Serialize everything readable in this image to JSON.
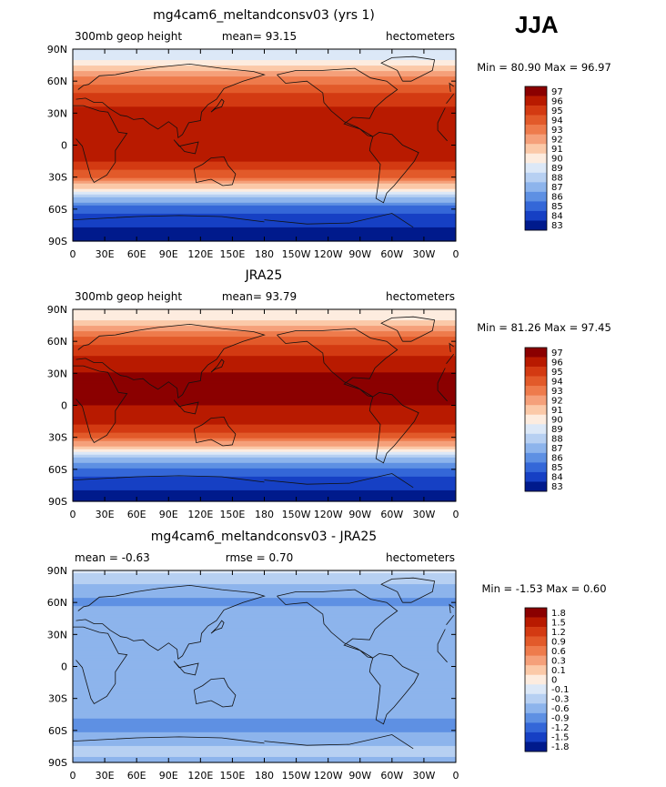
{
  "season": "JJA",
  "chart_data": [
    {
      "type": "heatmap",
      "title": "mg4cam6_meltandconsv03 (yrs 1)",
      "left_label": "300mb geop height",
      "center_label": "mean=  93.15",
      "right_label": "hectometers",
      "stats": "Min =  80.90 Max =  96.97",
      "x_ticks": [
        "0",
        "30E",
        "60E",
        "90E",
        "120E",
        "150E",
        "180",
        "150W",
        "120W",
        "90W",
        "60W",
        "30W",
        "0"
      ],
      "y_ticks": [
        "90N",
        "60N",
        "30N",
        "0",
        "30S",
        "60S",
        "90S"
      ],
      "colorbar": {
        "labels": [
          "97",
          "96",
          "95",
          "94",
          "93",
          "92",
          "91",
          "90",
          "89",
          "88",
          "87",
          "86",
          "85",
          "84",
          "83"
        ],
        "colors": [
          "#8b0000",
          "#b81a00",
          "#d33a12",
          "#e25a2a",
          "#ee7b4c",
          "#f5a07a",
          "#fbc9a8",
          "#fdecdf",
          "#dce8f7",
          "#b7d0f2",
          "#8db4ec",
          "#5e90e3",
          "#3467d8",
          "#1640c4",
          "#001a8c"
        ]
      },
      "zonal_profile": [
        [
          90,
          88.5
        ],
        [
          80,
          89.5
        ],
        [
          70,
          91.5
        ],
        [
          60,
          93.2
        ],
        [
          50,
          94.5
        ],
        [
          40,
          95.3
        ],
        [
          30,
          95.9
        ],
        [
          20,
          96.2
        ],
        [
          0,
          96.1
        ],
        [
          -10,
          95.9
        ],
        [
          -20,
          95.1
        ],
        [
          -30,
          93.6
        ],
        [
          -40,
          90.5
        ],
        [
          -50,
          87.2
        ],
        [
          -60,
          85
        ],
        [
          -70,
          83.9
        ],
        [
          -80,
          83.4
        ],
        [
          -90,
          83.2
        ]
      ]
    },
    {
      "type": "heatmap",
      "title": "JRA25",
      "left_label": "300mb geop height",
      "center_label": "mean=  93.79",
      "right_label": "hectometers",
      "stats": "Min =  81.26 Max =  97.45",
      "x_ticks": [
        "0",
        "30E",
        "60E",
        "90E",
        "120E",
        "150E",
        "180",
        "150W",
        "120W",
        "90W",
        "60W",
        "30W",
        "0"
      ],
      "y_ticks": [
        "90N",
        "60N",
        "30N",
        "0",
        "30S",
        "60S",
        "90S"
      ],
      "colorbar": {
        "labels": [
          "97",
          "96",
          "95",
          "94",
          "93",
          "92",
          "91",
          "90",
          "89",
          "88",
          "87",
          "86",
          "85",
          "84",
          "83"
        ],
        "colors": [
          "#8b0000",
          "#b81a00",
          "#d33a12",
          "#e25a2a",
          "#ee7b4c",
          "#f5a07a",
          "#fbc9a8",
          "#fdecdf",
          "#dce8f7",
          "#b7d0f2",
          "#8db4ec",
          "#5e90e3",
          "#3467d8",
          "#1640c4",
          "#001a8c"
        ]
      },
      "zonal_profile": [
        [
          90,
          89.5
        ],
        [
          80,
          90.5
        ],
        [
          70,
          92.5
        ],
        [
          60,
          94
        ],
        [
          50,
          95.3
        ],
        [
          40,
          96
        ],
        [
          30,
          96.6
        ],
        [
          20,
          96.9
        ],
        [
          0,
          96.5
        ],
        [
          -10,
          96.2
        ],
        [
          -20,
          95.4
        ],
        [
          -30,
          94
        ],
        [
          -40,
          90.8
        ],
        [
          -50,
          87.4
        ],
        [
          -60,
          85.2
        ],
        [
          -70,
          84.2
        ],
        [
          -80,
          83.5
        ],
        [
          -90,
          83.3
        ]
      ]
    },
    {
      "type": "heatmap",
      "title": "mg4cam6_meltandconsv03 - JRA25",
      "left_label": "mean =  -0.63",
      "center_label": "rmse =   0.70",
      "right_label": "hectometers",
      "stats": "Min =  -1.53 Max =   0.60",
      "x_ticks": [
        "0",
        "30E",
        "60E",
        "90E",
        "120E",
        "150E",
        "180",
        "150W",
        "120W",
        "90W",
        "60W",
        "30W",
        "0"
      ],
      "y_ticks": [
        "90N",
        "60N",
        "30N",
        "0",
        "30S",
        "60S",
        "90S"
      ],
      "colorbar": {
        "labels": [
          "1.8",
          "1.5",
          "1.2",
          "0.9",
          "0.6",
          "0.3",
          "0.1",
          "0",
          "-0.1",
          "-0.3",
          "-0.6",
          "-0.9",
          "-1.2",
          "-1.5",
          "-1.8"
        ],
        "colors": [
          "#8b0000",
          "#b81a00",
          "#d33a12",
          "#e25a2a",
          "#ee7b4c",
          "#f5a07a",
          "#fbc9a8",
          "#fdecdf",
          "#dce8f7",
          "#b7d0f2",
          "#8db4ec",
          "#5e90e3",
          "#3467d8",
          "#1640c4",
          "#001a8c"
        ]
      },
      "zonal_profile": [
        [
          90,
          -0.2
        ],
        [
          80,
          -0.4
        ],
        [
          70,
          -0.7
        ],
        [
          60,
          -0.8
        ],
        [
          50,
          -0.6
        ],
        [
          40,
          -0.5
        ],
        [
          30,
          -0.6
        ],
        [
          20,
          -0.7
        ],
        [
          0,
          -0.55
        ],
        [
          -10,
          -0.6
        ],
        [
          -20,
          -0.7
        ],
        [
          -30,
          -0.6
        ],
        [
          -40,
          -0.65
        ],
        [
          -50,
          -0.75
        ],
        [
          -60,
          -0.8
        ],
        [
          -70,
          -0.5
        ],
        [
          -80,
          -0.4
        ],
        [
          -90,
          -0.5
        ]
      ]
    }
  ]
}
